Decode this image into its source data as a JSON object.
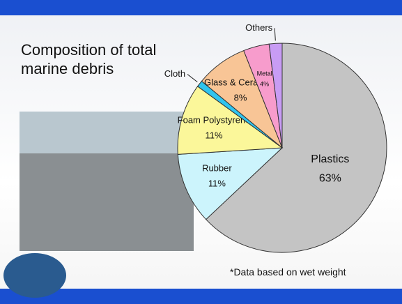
{
  "chart_data": {
    "type": "pie",
    "title": "Composition of total marine debris",
    "note": "*Data based on wet weight",
    "categories": [
      "Plastics",
      "Rubber",
      "Foam Polystyrene",
      "Cloth",
      "Glass & Ceramics",
      "Metal",
      "Others"
    ],
    "values": [
      63,
      11,
      11,
      1,
      8,
      4,
      2
    ],
    "value_labels": [
      "63%",
      "11%",
      "11%",
      null,
      "8%",
      "4%",
      null
    ],
    "colors": [
      "#c4c4c4",
      "#ccf4fc",
      "#fbf79a",
      "#2fc4ee",
      "#f8c596",
      "#f79ccc",
      "#c89cf4"
    ]
  }
}
